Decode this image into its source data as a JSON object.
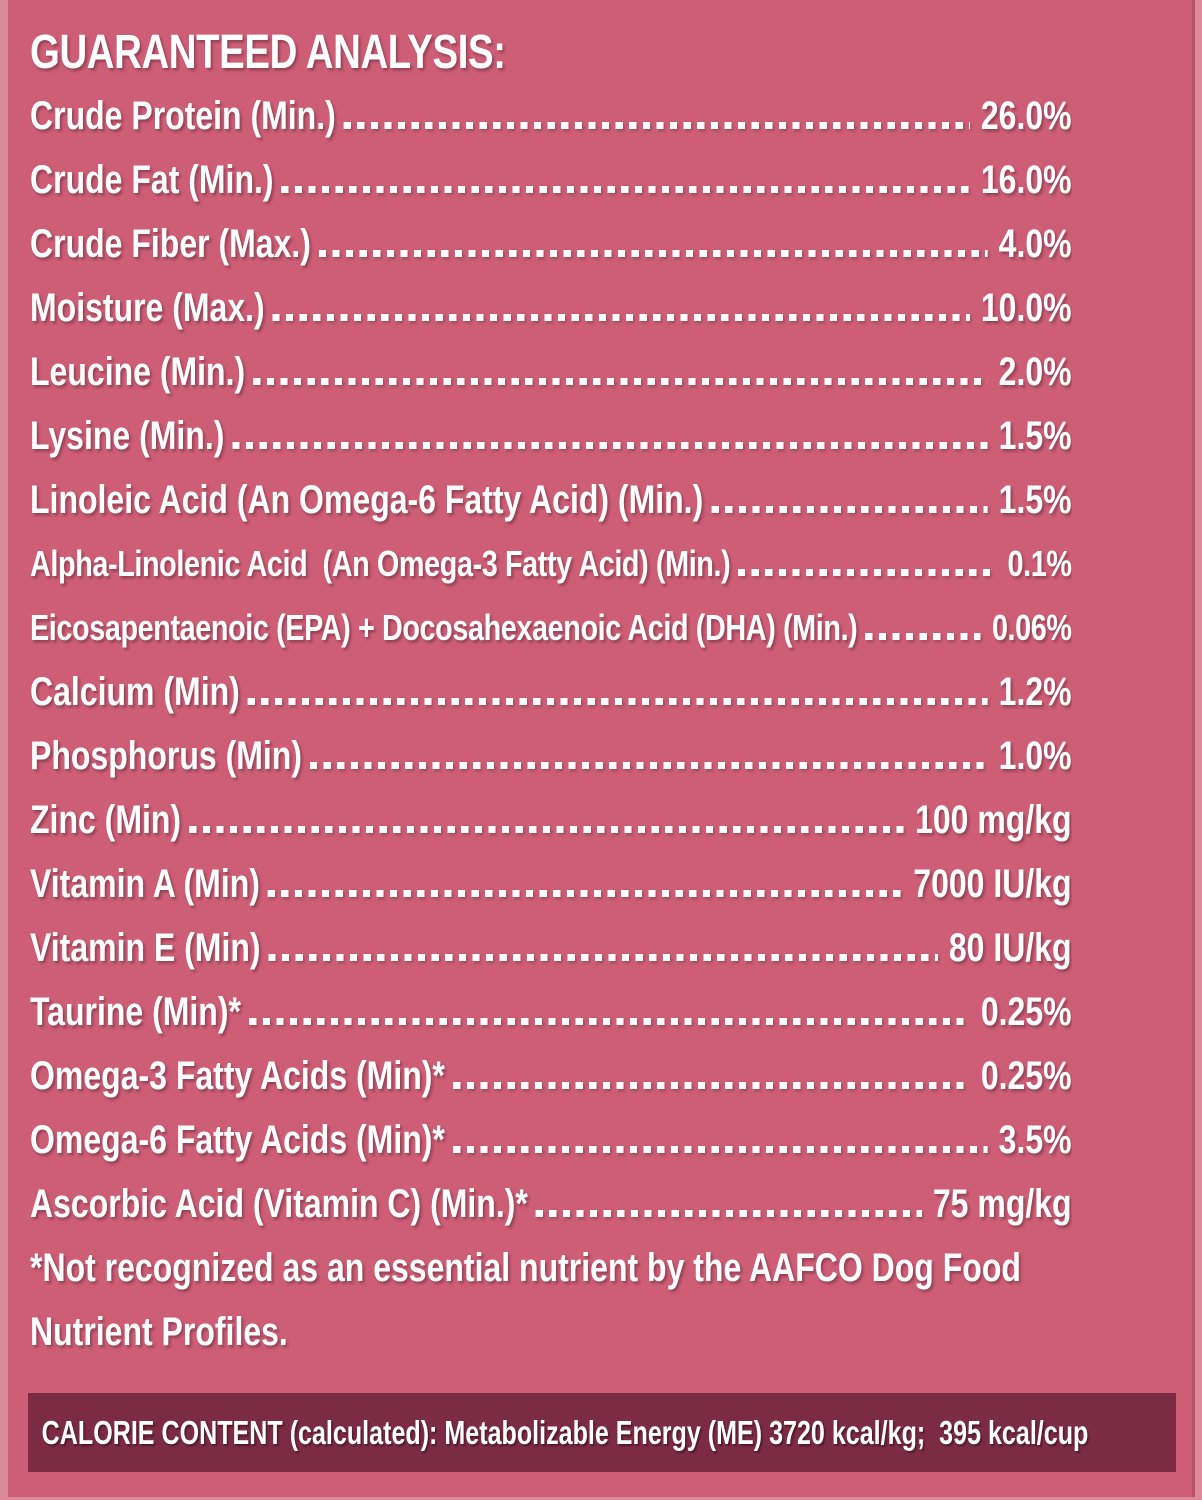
{
  "panel": {
    "title": "GUARANTEED ANALYSIS:"
  },
  "analysis": {
    "rows": [
      {
        "label": "Crude Protein (Min.)",
        "value": "26.0%"
      },
      {
        "label": "Crude Fat (Min.)",
        "value": "16.0%"
      },
      {
        "label": "Crude Fiber (Max.)",
        "value": "4.0%"
      },
      {
        "label": "Moisture (Max.)",
        "value": "10.0%"
      },
      {
        "label": "Leucine (Min.)",
        "value": "2.0%"
      },
      {
        "label": "Lysine (Min.)",
        "value": "1.5%"
      },
      {
        "label": "Linoleic Acid (An Omega-6 Fatty Acid) (Min.)",
        "value": "1.5%"
      },
      {
        "label": "Alpha-Linolenic Acid  (An Omega-3 Fatty Acid) (Min.)",
        "value": "0.1%",
        "size": "small"
      },
      {
        "label": "Eicosapentaenoic (EPA) + Docosahexaenoic Acid (DHA) (Min.)",
        "value": "0.06%",
        "size": "small"
      },
      {
        "label": "Calcium (Min)",
        "value": "1.2%"
      },
      {
        "label": "Phosphorus (Min)",
        "value": "1.0%"
      },
      {
        "label": "Zinc (Min)",
        "value": "100 mg/kg"
      },
      {
        "label": "Vitamin A (Min)",
        "value": "7000 IU/kg"
      },
      {
        "label": "Vitamin E (Min)",
        "value": "80 IU/kg"
      },
      {
        "label": "Taurine (Min)*",
        "value": "0.25%"
      },
      {
        "label": "Omega-3 Fatty Acids (Min)*",
        "value": "0.25%"
      },
      {
        "label": "Omega-6 Fatty Acids (Min)*",
        "value": "3.5%"
      },
      {
        "label": "Ascorbic Acid (Vitamin C) (Min.)*",
        "value": "75 mg/kg"
      }
    ]
  },
  "footnote": {
    "line1": "*Not recognized as an essential nutrient by the AAFCO Dog Food",
    "line2": "Nutrient Profiles."
  },
  "calorie": {
    "text": "CALORIE CONTENT (calculated): Metabolizable Energy (ME) 3720 kcal/kg;  395 kcal/cup"
  },
  "colors": {
    "background_pink": "#CE5E75",
    "edge_light_pink": "#DC8A9A",
    "edge_seam": "#B5536A",
    "calorie_bar_maroon": "#7C2B44",
    "text": "#FFFFFF"
  }
}
